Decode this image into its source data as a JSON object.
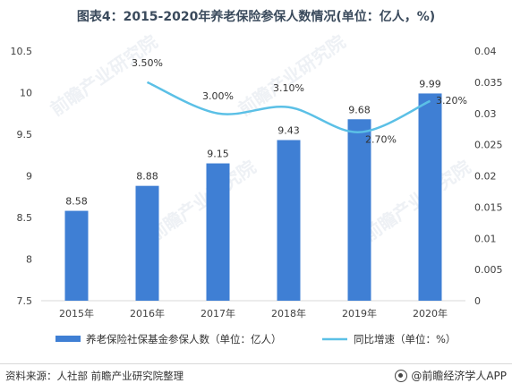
{
  "title": "图表4：2015-2020年养老保险参保人数情况(单位：亿人，%)",
  "source": "资料来源：人社部 前瞻产业研究院整理",
  "brand": "@前瞻经济学人APP",
  "watermark": "前瞻产业研究院",
  "chart_data": {
    "type": "bar",
    "categories": [
      "2015年",
      "2016年",
      "2017年",
      "2018年",
      "2019年",
      "2020年"
    ],
    "series": [
      {
        "name": "养老保险社保基金参保人数（单位：亿人）",
        "type": "bar",
        "axis": "left",
        "color": "#3f7fd4",
        "values": [
          8.58,
          8.88,
          9.15,
          9.43,
          9.68,
          9.99
        ],
        "labels": [
          "8.58",
          "8.88",
          "9.15",
          "9.43",
          "9.68",
          "9.99"
        ]
      },
      {
        "name": "同比增速（单位：%）",
        "type": "line",
        "axis": "right",
        "color": "#5bc0e6",
        "values": [
          null,
          0.035,
          0.03,
          0.031,
          0.027,
          0.032
        ],
        "labels": [
          null,
          "3.50%",
          "3.00%",
          "3.10%",
          "2.70%",
          "3.20%"
        ]
      }
    ],
    "y_left": {
      "min": 7.5,
      "max": 10.5,
      "ticks": [
        "7.5",
        "8",
        "8.5",
        "9",
        "9.5",
        "10",
        "10.5"
      ]
    },
    "y_right": {
      "min": 0,
      "max": 0.04,
      "ticks": [
        "0",
        "0.005",
        "0.01",
        "0.015",
        "0.02",
        "0.025",
        "0.03",
        "0.035",
        "0.04"
      ]
    },
    "grid": false,
    "legend_position": "bottom"
  }
}
